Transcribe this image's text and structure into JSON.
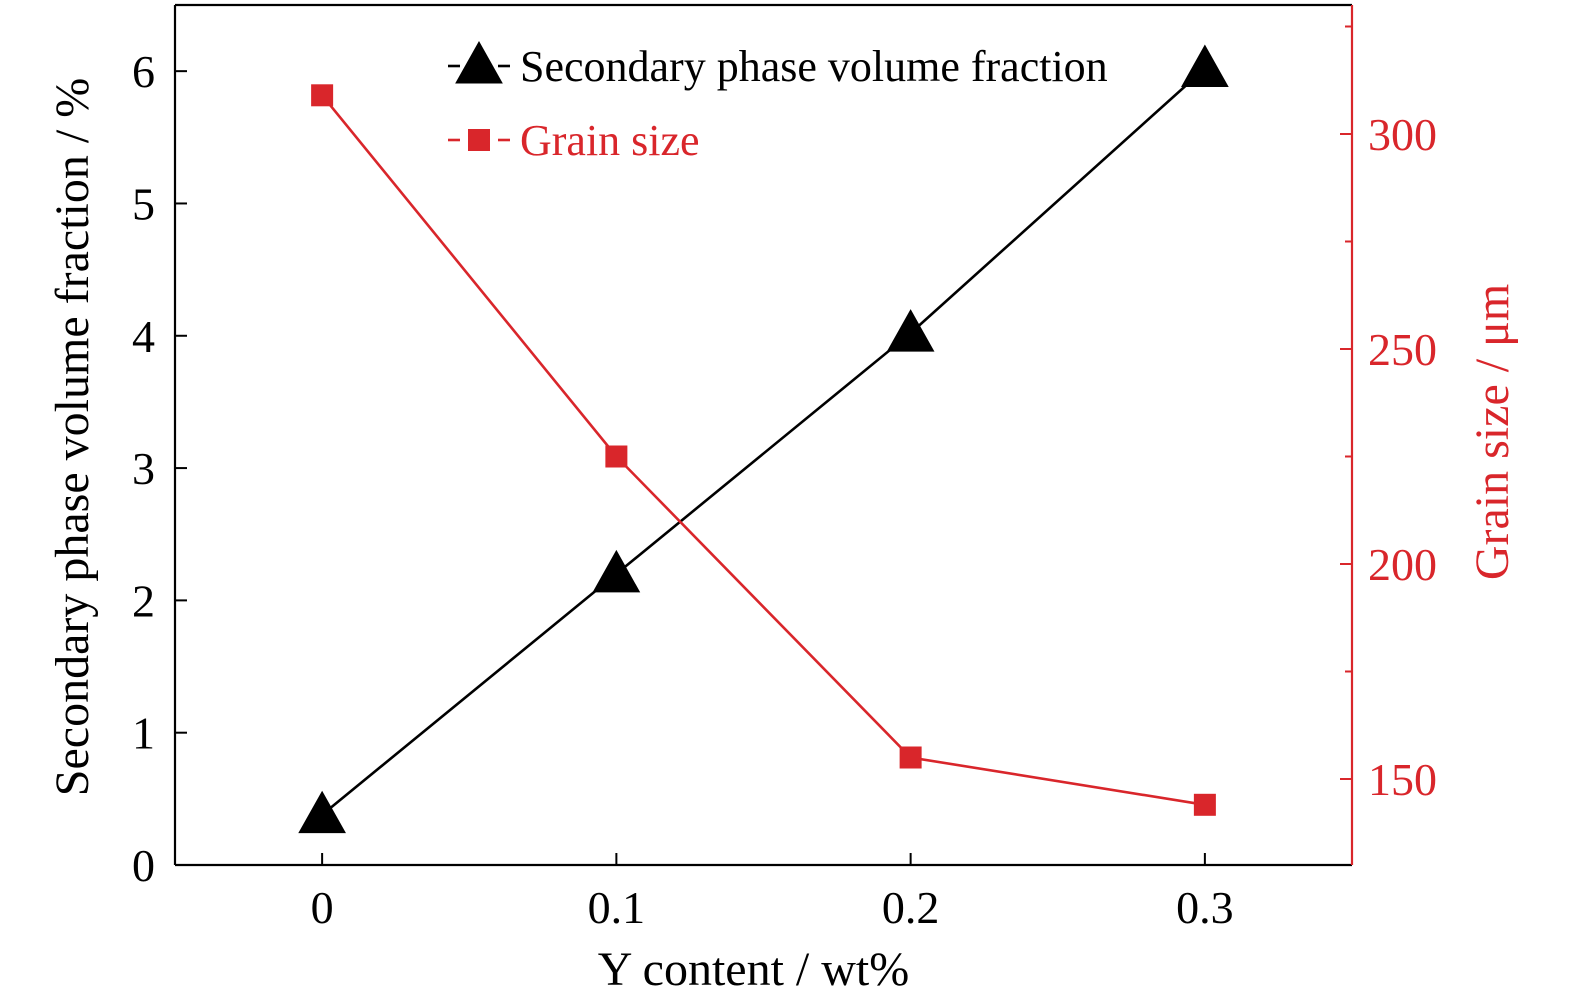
{
  "chart_data": {
    "type": "line",
    "x": [
      0,
      0.1,
      0.2,
      0.3
    ],
    "x_tick_labels": [
      "0",
      "0.1",
      "0.2",
      "0.3"
    ],
    "xlabel": "Y content / wt%",
    "xlim": [
      -0.05,
      0.35
    ],
    "ylabel_left": "Secondary phase volume fraction / %",
    "ylim_left": [
      0,
      6.5
    ],
    "yticks_left": [
      "0",
      "1",
      "2",
      "3",
      "4",
      "5",
      "6"
    ],
    "ylabel_right": "Grain size / μm",
    "ylim_right": [
      130,
      330
    ],
    "yticks_right": [
      "150",
      "200",
      "250",
      "300"
    ],
    "legend_position": "top-center",
    "grid": false,
    "series": [
      {
        "name": "Secondary phase volume fraction",
        "axis": "left",
        "marker": "triangle",
        "color": "#000000",
        "values": [
          0.38,
          2.2,
          4.02,
          6.02
        ]
      },
      {
        "name": "Grain size",
        "axis": "right",
        "marker": "square",
        "color": "#d9262b",
        "values": [
          309,
          225,
          155,
          144
        ]
      }
    ]
  }
}
